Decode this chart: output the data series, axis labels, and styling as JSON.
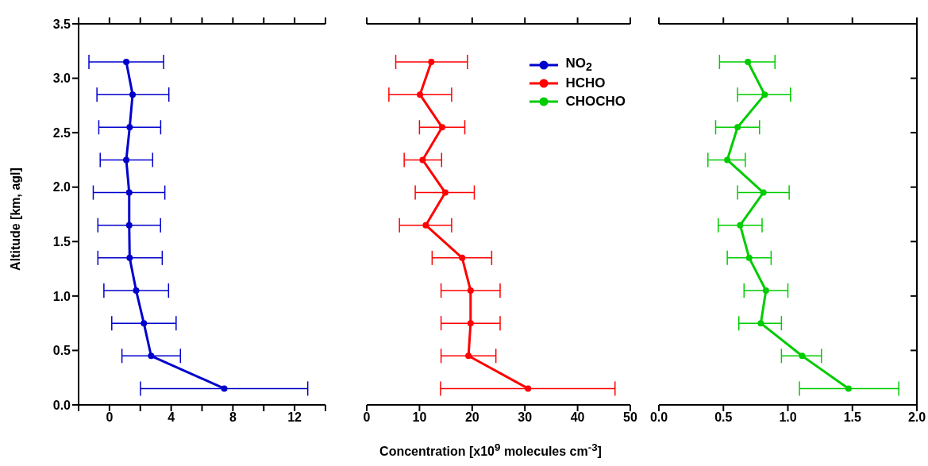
{
  "chart_data": [
    {
      "type": "line",
      "ylabel": "Altitude [km, agl]",
      "xlim": [
        -2,
        14
      ],
      "xticks": [
        {
          "value": -2,
          "label": null
        },
        0,
        {
          "value": 2,
          "label": null
        },
        4,
        {
          "value": 6,
          "label": null
        },
        8,
        {
          "value": 10,
          "label": null
        },
        12,
        {
          "value": 14,
          "label": null
        }
      ],
      "ylim": [
        0,
        3.5
      ],
      "yticks": [
        {
          "value": 0,
          "label": "0.0"
        },
        {
          "value": 0.5,
          "label": "0.5"
        },
        {
          "value": 1,
          "label": "1.0"
        },
        {
          "value": 1.5,
          "label": "1.5"
        },
        {
          "value": 2,
          "label": "2.0"
        },
        {
          "value": 2.5,
          "label": "2.5"
        },
        {
          "value": 3,
          "label": "3.0"
        },
        {
          "value": 3.5,
          "label": "3.5"
        }
      ],
      "marker": "circle",
      "line_style": "solid",
      "series": [
        {
          "name": "NO$_{2}$",
          "color": "#0000cc",
          "x": [
            7.44,
            2.7,
            2.23,
            1.73,
            1.31,
            1.28,
            1.28,
            1.09,
            1.31,
            1.5,
            1.09
          ],
          "values": [
            0.15,
            0.45,
            0.75,
            1.05,
            1.35,
            1.65,
            1.95,
            2.25,
            2.55,
            2.85,
            3.15
          ],
          "xerrors": [
            [
              2.01,
              12.85
            ],
            [
              0.81,
              4.6
            ],
            [
              0.15,
              4.32
            ],
            [
              -0.36,
              3.83
            ],
            [
              -0.75,
              3.42
            ],
            [
              -0.75,
              3.31
            ],
            [
              -1.05,
              3.59
            ],
            [
              -0.6,
              2.8
            ],
            [
              -0.69,
              3.32
            ],
            [
              -0.81,
              3.85
            ],
            [
              -1.33,
              3.51
            ]
          ]
        }
      ]
    },
    {
      "type": "line",
      "xlabel": "Concentration [x10$^{9}$ molecules cm$^{-3}$]",
      "xlim": [
        0,
        50
      ],
      "xticks": [
        0,
        10,
        20,
        30,
        40,
        50
      ],
      "ylim": [
        0,
        3.5
      ],
      "tick_labels": "x",
      "marker": "circle",
      "line_style": "solid",
      "legend": "top right",
      "series": [
        {
          "name": "HCHO",
          "color": "#ff0000",
          "x": [
            30.6,
            19.3,
            19.7,
            19.7,
            18.1,
            11.2,
            14.9,
            10.6,
            14.3,
            10.1,
            12.25
          ],
          "values": [
            0.15,
            0.45,
            0.75,
            1.05,
            1.35,
            1.65,
            1.95,
            2.25,
            2.55,
            2.85,
            3.15
          ],
          "xerrors": [
            [
              14,
              47.1
            ],
            [
              14.1,
              24.5
            ],
            [
              14.1,
              25.3
            ],
            [
              14.1,
              25.3
            ],
            [
              12.4,
              23.7
            ],
            [
              6.2,
              16.1
            ],
            [
              9.2,
              20.4
            ],
            [
              7.1,
              14.2
            ],
            [
              10,
              18.6
            ],
            [
              4.2,
              16.1
            ],
            [
              5.5,
              19.1
            ]
          ]
        }
      ]
    },
    {
      "type": "line",
      "xlim": [
        0,
        2
      ],
      "xticks": [
        {
          "value": 0,
          "label": "0.0"
        },
        {
          "value": 0.5,
          "label": "0.5"
        },
        {
          "value": 1,
          "label": "1.0"
        },
        {
          "value": 1.5,
          "label": "1.5"
        },
        {
          "value": 2,
          "label": "2.0"
        }
      ],
      "ylim": [
        0,
        3.5
      ],
      "tick_labels": "x",
      "marker": "circle",
      "line_style": "solid",
      "series": [
        {
          "name": "CHOCHO",
          "color": "#00cc00",
          "x": [
            1.47,
            1.11,
            0.79,
            0.83,
            0.7,
            0.63,
            0.81,
            0.53,
            0.61,
            0.82,
            0.69
          ],
          "values": [
            0.15,
            0.45,
            0.75,
            1.05,
            1.35,
            1.65,
            1.95,
            2.25,
            2.55,
            2.85,
            3.15
          ],
          "xerrors": [
            [
              1.09,
              1.86
            ],
            [
              0.95,
              1.26
            ],
            [
              0.62,
              0.95
            ],
            [
              0.66,
              1.0
            ],
            [
              0.53,
              0.87
            ],
            [
              0.46,
              0.8
            ],
            [
              0.61,
              1.01
            ],
            [
              0.38,
              0.67
            ],
            [
              0.44,
              0.78
            ],
            [
              0.61,
              1.02
            ],
            [
              0.47,
              0.9
            ]
          ]
        }
      ]
    }
  ]
}
